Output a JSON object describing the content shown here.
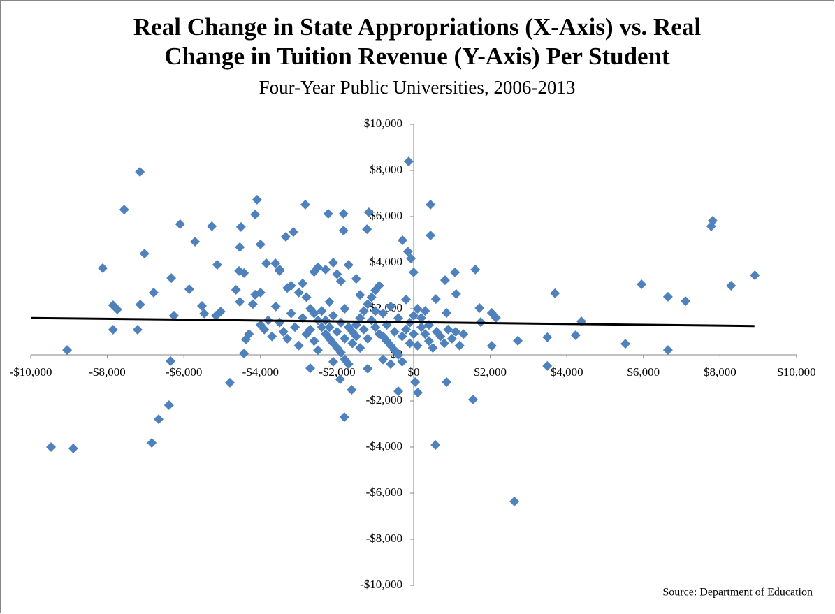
{
  "chart_data": {
    "type": "scatter",
    "title": [
      "Real Change in State Appropriations (X-Axis) vs. Real",
      "Change in Tuition Revenue (Y-Axis) Per Student"
    ],
    "subtitle": "Four-Year Public Universities, 2006-2013",
    "source": "Source: Department of Education",
    "color": "#4f81bd",
    "xlim": [
      -10000,
      10000
    ],
    "ylim": [
      -10000,
      10000
    ],
    "xticks": [
      {
        "value": -10000,
        "label": "-$10,000"
      },
      {
        "value": -8000,
        "label": "-$8,000"
      },
      {
        "value": -6000,
        "label": "-$6,000"
      },
      {
        "value": -4000,
        "label": "-$4,000"
      },
      {
        "value": -2000,
        "label": "-$2,000"
      },
      {
        "value": 0,
        "label": "$0"
      },
      {
        "value": 2000,
        "label": "$2,000"
      },
      {
        "value": 4000,
        "label": "$4,000"
      },
      {
        "value": 6000,
        "label": "$6,000"
      },
      {
        "value": 8000,
        "label": "$8,000"
      },
      {
        "value": 10000,
        "label": "$10,000"
      }
    ],
    "yticks": [
      {
        "value": -10000,
        "label": "-$10,000"
      },
      {
        "value": -8000,
        "label": "-$8,000"
      },
      {
        "value": -6000,
        "label": "-$6,000"
      },
      {
        "value": -4000,
        "label": "-$4,000"
      },
      {
        "value": -2000,
        "label": "-$2,000"
      },
      {
        "value": 0,
        "label": "$0"
      },
      {
        "value": 2000,
        "label": "$2,000"
      },
      {
        "value": 4000,
        "label": "$4,000"
      },
      {
        "value": 6000,
        "label": "$6,000"
      },
      {
        "value": 8000,
        "label": "$8,000"
      },
      {
        "value": 10000,
        "label": "$10,000"
      }
    ],
    "x": [
      -9470,
      -8890,
      -9050,
      -7150,
      -7560,
      -8120,
      -7030,
      -7850,
      -7740,
      -7850,
      -7210,
      -7140,
      -6790,
      -6100,
      -6330,
      -6260,
      -6350,
      -6390,
      -6660,
      -6840,
      -5710,
      -5270,
      -5860,
      -5530,
      -5470,
      -5130,
      -5040,
      -5160,
      -4800,
      -4510,
      -4540,
      -4560,
      -4430,
      -4640,
      -4540,
      -4380,
      -4430,
      -4090,
      -4140,
      -4000,
      -4140,
      -4000,
      -3850,
      -3610,
      -3500,
      -3340,
      -3140,
      -2830,
      -2230,
      -1830,
      -1830,
      -1220,
      -1170,
      -130,
      440,
      440,
      -290,
      -150,
      -70,
      0,
      1610,
      1080,
      820,
      1110,
      580,
      860,
      1720,
      2040,
      2150,
      1750,
      2040,
      2720,
      3490,
      3690,
      3490,
      4230,
      4380,
      5530,
      5950,
      6640,
      6640,
      7100,
      8290,
      8910,
      7810,
      7770,
      2630,
      570,
      1550,
      -1810,
      -1620,
      -400,
      110,
      40,
      860,
      -1920,
      -2700,
      -3300,
      -3200,
      -3000,
      -2900,
      -2800,
      -2700,
      -2600,
      -2500,
      -2400,
      -2300,
      -2200,
      -2100,
      -2000,
      -1900,
      -1800,
      -1700,
      -1600,
      -1500,
      -1400,
      -1300,
      -1200,
      -1100,
      -1000,
      -900,
      -800,
      -700,
      -600,
      -500,
      -400,
      -300,
      -200,
      -100,
      0,
      100,
      200,
      300,
      400,
      500,
      600,
      700,
      800,
      900,
      1000,
      1100,
      1200,
      1300,
      -2500,
      -2300,
      -2100,
      -2000,
      -1900,
      -1700,
      -1500,
      -2600,
      -3500,
      -3400,
      -3300,
      -3100,
      -3000,
      -2900,
      -3700,
      -3800,
      -3900,
      -4000,
      -4200,
      -4300,
      -3600,
      -3500,
      -2700,
      -2600,
      -2500,
      -2400,
      -2300,
      -2200,
      -2100,
      -2000,
      -1900,
      -1800,
      -1700,
      -1600,
      -1500,
      -1400,
      -1300,
      -1200,
      -1100,
      -1000,
      -900,
      -800,
      -700,
      -600,
      -500,
      -400,
      -300,
      -200,
      -100,
      0,
      100,
      200,
      300,
      400,
      -1800,
      -2200,
      -1400,
      -1000,
      -2800,
      -3200,
      -1200,
      -800,
      -600,
      -2100
    ],
    "values": [
      -4000,
      -4060,
      210,
      7940,
      6300,
      3760,
      4390,
      2150,
      1970,
      1090,
      1090,
      2180,
      2700,
      5670,
      3330,
      1700,
      -270,
      -2180,
      -2790,
      -3820,
      4910,
      5580,
      2850,
      2120,
      1790,
      3910,
      1880,
      1700,
      -1210,
      5550,
      4670,
      3640,
      3550,
      2820,
      2300,
      670,
      60,
      6730,
      6090,
      4790,
      2610,
      2700,
      3970,
      3970,
      3640,
      5120,
      5330,
      6520,
      6120,
      6120,
      5390,
      5450,
      6180,
      8390,
      6520,
      5180,
      4970,
      4480,
      4180,
      3580,
      3700,
      3580,
      3240,
      2640,
      2420,
      1820,
      2030,
      1820,
      1610,
      1420,
      390,
      610,
      760,
      2670,
      -480,
      850,
      1450,
      480,
      3060,
      2520,
      210,
      2330,
      3000,
      3450,
      5820,
      5580,
      -6360,
      -3910,
      -1940,
      -2700,
      -1520,
      -1580,
      -1640,
      -1180,
      -1180,
      -1060,
      -580,
      2900,
      3000,
      2700,
      3100,
      2500,
      2000,
      1800,
      1500,
      1200,
      900,
      700,
      500,
      300,
      100,
      -200,
      -400,
      1000,
      1300,
      1600,
      1900,
      2200,
      2500,
      2800,
      3000,
      800,
      600,
      400,
      200,
      0,
      -300,
      1100,
      1400,
      1700,
      2000,
      1200,
      900,
      600,
      300,
      1000,
      800,
      500,
      1100,
      700,
      1000,
      400,
      900,
      3800,
      3700,
      4000,
      3500,
      3200,
      3900,
      3300,
      3600,
      1400,
      1000,
      700,
      1200,
      400,
      1600,
      800,
      1500,
      1100,
      1300,
      2200,
      900,
      2100,
      3700,
      1100,
      600,
      200,
      1900,
      1500,
      2300,
      1700,
      1000,
      1400,
      2000,
      1200,
      500,
      800,
      300,
      1100,
      700,
      1500,
      1200,
      900,
      1800,
      1300,
      2100,
      1000,
      1600,
      800,
      2400,
      500,
      900,
      400,
      1600,
      1900,
      1300,
      700,
      1200,
      2600,
      1900,
      900,
      1800,
      -600,
      -200,
      -400,
      -300
    ],
    "trendline": {
      "x": [
        -10000,
        8900
      ],
      "values": [
        1600,
        1250
      ],
      "color": "#000000"
    }
  }
}
